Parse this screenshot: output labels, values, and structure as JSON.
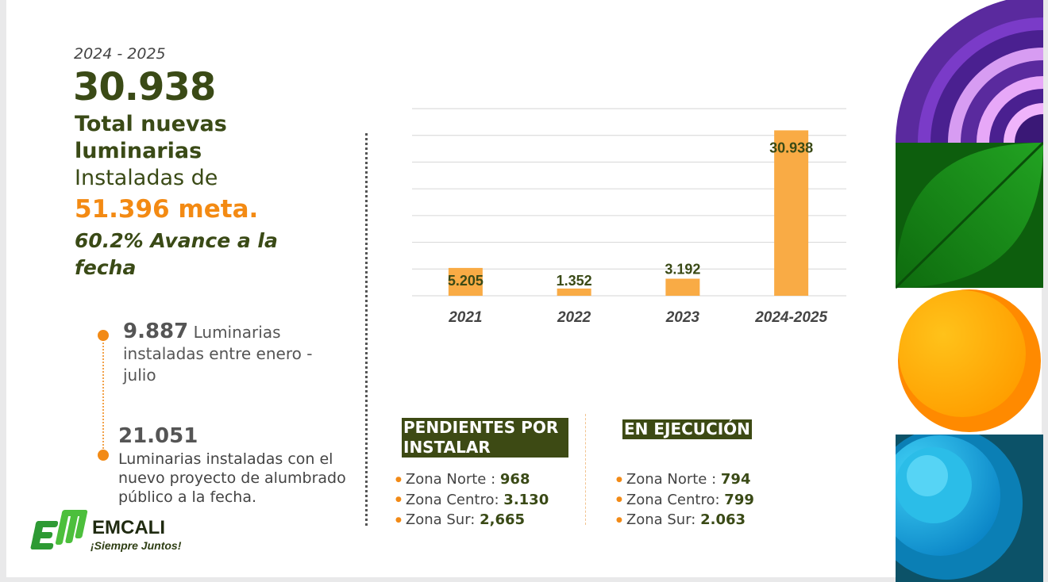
{
  "header": {
    "period": "2024 - 2025",
    "total": "30.938",
    "total_label": "Total nuevas luminarias",
    "installed_of": "Instaladas de",
    "goal": "51.396 meta.",
    "progress": "60.2% Avance a la fecha"
  },
  "milestones": [
    {
      "number": "9.887",
      "text": "Luminarias instaladas entre enero - julio"
    },
    {
      "number": "21.051",
      "text": "Luminarias instaladas con el nuevo proyecto de alumbrado público a la fecha."
    }
  ],
  "chart_data": {
    "type": "bar",
    "categories": [
      "2021",
      "2022",
      "2023",
      "2024-2025"
    ],
    "values": [
      5205,
      1352,
      3192,
      30938
    ],
    "labels": [
      "5.205",
      "1.352",
      "3.192",
      "30.938"
    ],
    "ylim": [
      0,
      35000
    ],
    "grid": true,
    "colors": {
      "bar": "#f9ab45",
      "grid": "#d6d6d6",
      "label": "#3a4a16",
      "tick": "#444444"
    }
  },
  "pending": {
    "title": "PENDIENTES POR INSTALAR",
    "zones": [
      {
        "label": "Zona Norte :",
        "value": "968"
      },
      {
        "label": "Zona Centro:",
        "value": "3.130"
      },
      {
        "label": "Zona Sur:",
        "value": "2,665"
      }
    ]
  },
  "execution": {
    "title": "EN EJECUCIÓN",
    "zones": [
      {
        "label": "Zona Norte :",
        "value": "794"
      },
      {
        "label": "Zona Centro:",
        "value": "799"
      },
      {
        "label": "Zona Sur:",
        "value": "2.063"
      }
    ]
  },
  "logo": {
    "name": "EMCALI",
    "tagline": "¡Siempre Juntos!"
  },
  "colors": {
    "dark_green": "#3a4a16",
    "orange": "#f38a13",
    "bar": "#f9ab45"
  }
}
